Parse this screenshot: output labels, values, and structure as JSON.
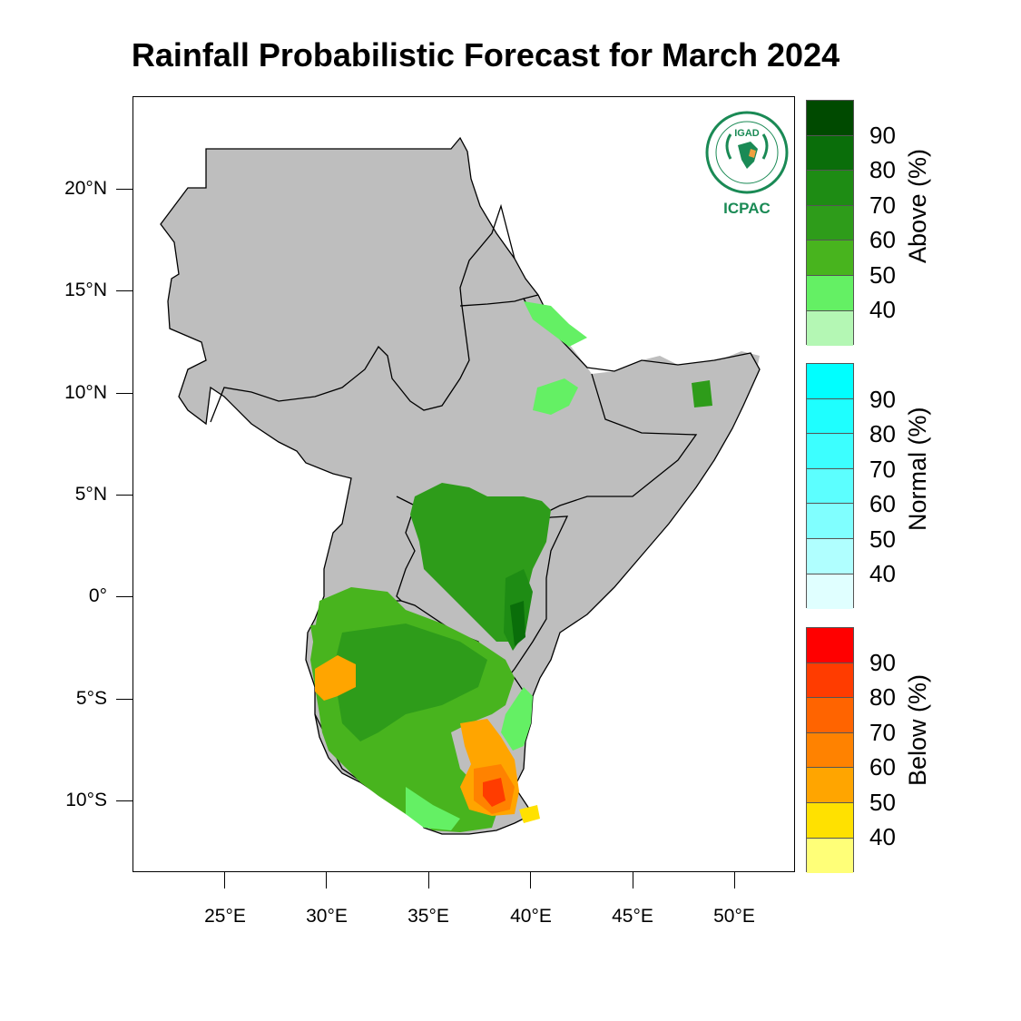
{
  "title": "Rainfall Probabilistic Forecast for March 2024",
  "logo": {
    "name": "IGAD",
    "text": "ICPAC",
    "color": "#1a8a55"
  },
  "axes": {
    "y_labels": [
      "20°N",
      "15°N",
      "10°N",
      "5°N",
      "0°",
      "5°S",
      "10°S"
    ],
    "x_labels": [
      "25°E",
      "30°E",
      "35°E",
      "40°E",
      "45°E",
      "50°E"
    ]
  },
  "colorbars": [
    {
      "title": "Above (%)",
      "ticks": [
        "90",
        "80",
        "70",
        "60",
        "50",
        "40"
      ],
      "colors": [
        "#004a00",
        "#0a6e0a",
        "#1e8c14",
        "#2e9c1a",
        "#48b41e",
        "#64f064",
        "#b4f7b4"
      ]
    },
    {
      "title": "Normal (%)",
      "ticks": [
        "90",
        "80",
        "70",
        "60",
        "50",
        "40"
      ],
      "colors": [
        "#00ffff",
        "#1effff",
        "#3cffff",
        "#5cffff",
        "#80ffff",
        "#b0ffff",
        "#e0ffff"
      ]
    },
    {
      "title": "Below (%)",
      "ticks": [
        "90",
        "80",
        "70",
        "60",
        "50",
        "40"
      ],
      "colors": [
        "#ff0000",
        "#ff3c00",
        "#ff6400",
        "#ff8200",
        "#ffa500",
        "#ffe100",
        "#ffff78"
      ]
    }
  ],
  "map_colors": {
    "land": "#bebebe",
    "border": "#000000"
  }
}
